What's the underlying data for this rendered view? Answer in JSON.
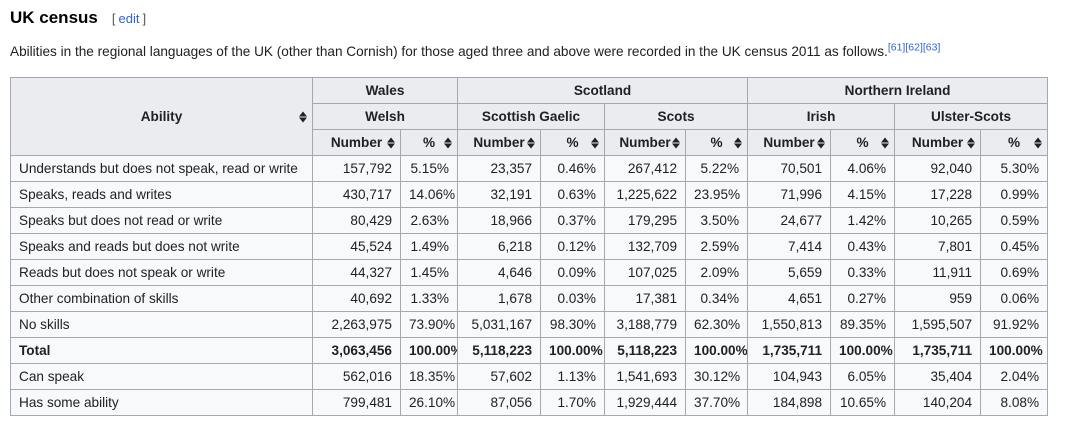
{
  "page": {
    "title": "UK census",
    "edit": {
      "bracket_open": "[",
      "label": "edit",
      "bracket_close": "]"
    },
    "intro": "Abilities in the regional languages of the UK (other than Cornish) for those aged three and above were recorded in the UK census 2011 as follows.",
    "references": [
      "[61]",
      "[62]",
      "[63]"
    ]
  },
  "colors": {
    "header_bg": "#eaecf0",
    "cell_bg": "#f8f9fa",
    "border": "#a2a9b1",
    "link": "#3366cc",
    "text": "#202122"
  },
  "table": {
    "ability_header": "Ability",
    "number_label": "Number",
    "percent_label": "%",
    "regions": [
      {
        "label": "Wales",
        "colspan": 2
      },
      {
        "label": "Scotland",
        "colspan": 4
      },
      {
        "label": "Northern Ireland",
        "colspan": 4
      }
    ],
    "languages": [
      "Welsh",
      "Scottish Gaelic",
      "Scots",
      "Irish",
      "Ulster-Scots"
    ],
    "rows": [
      {
        "ability": "Understands but does not speak, read or write",
        "bold": false,
        "cells": [
          "157,792",
          "5.15%",
          "23,357",
          "0.46%",
          "267,412",
          "5.22%",
          "70,501",
          "4.06%",
          "92,040",
          "5.30%"
        ]
      },
      {
        "ability": "Speaks, reads and writes",
        "bold": false,
        "cells": [
          "430,717",
          "14.06%",
          "32,191",
          "0.63%",
          "1,225,622",
          "23.95%",
          "71,996",
          "4.15%",
          "17,228",
          "0.99%"
        ]
      },
      {
        "ability": "Speaks but does not read or write",
        "bold": false,
        "cells": [
          "80,429",
          "2.63%",
          "18,966",
          "0.37%",
          "179,295",
          "3.50%",
          "24,677",
          "1.42%",
          "10,265",
          "0.59%"
        ]
      },
      {
        "ability": "Speaks and reads but does not write",
        "bold": false,
        "cells": [
          "45,524",
          "1.49%",
          "6,218",
          "0.12%",
          "132,709",
          "2.59%",
          "7,414",
          "0.43%",
          "7,801",
          "0.45%"
        ]
      },
      {
        "ability": "Reads but does not speak or write",
        "bold": false,
        "cells": [
          "44,327",
          "1.45%",
          "4,646",
          "0.09%",
          "107,025",
          "2.09%",
          "5,659",
          "0.33%",
          "11,911",
          "0.69%"
        ]
      },
      {
        "ability": "Other combination of skills",
        "bold": false,
        "cells": [
          "40,692",
          "1.33%",
          "1,678",
          "0.03%",
          "17,381",
          "0.34%",
          "4,651",
          "0.27%",
          "959",
          "0.06%"
        ]
      },
      {
        "ability": "No skills",
        "bold": false,
        "cells": [
          "2,263,975",
          "73.90%",
          "5,031,167",
          "98.30%",
          "3,188,779",
          "62.30%",
          "1,550,813",
          "89.35%",
          "1,595,507",
          "91.92%"
        ]
      },
      {
        "ability": "Total",
        "bold": true,
        "cells": [
          "3,063,456",
          "100.00%",
          "5,118,223",
          "100.00%",
          "5,118,223",
          "100.00%",
          "1,735,711",
          "100.00%",
          "1,735,711",
          "100.00%"
        ]
      },
      {
        "ability": "Can speak",
        "bold": false,
        "cells": [
          "562,016",
          "18.35%",
          "57,602",
          "1.13%",
          "1,541,693",
          "30.12%",
          "104,943",
          "6.05%",
          "35,404",
          "2.04%"
        ]
      },
      {
        "ability": "Has some ability",
        "bold": false,
        "cells": [
          "799,481",
          "26.10%",
          "87,056",
          "1.70%",
          "1,929,444",
          "37.70%",
          "184,898",
          "10.65%",
          "140,204",
          "8.08%"
        ]
      }
    ]
  }
}
